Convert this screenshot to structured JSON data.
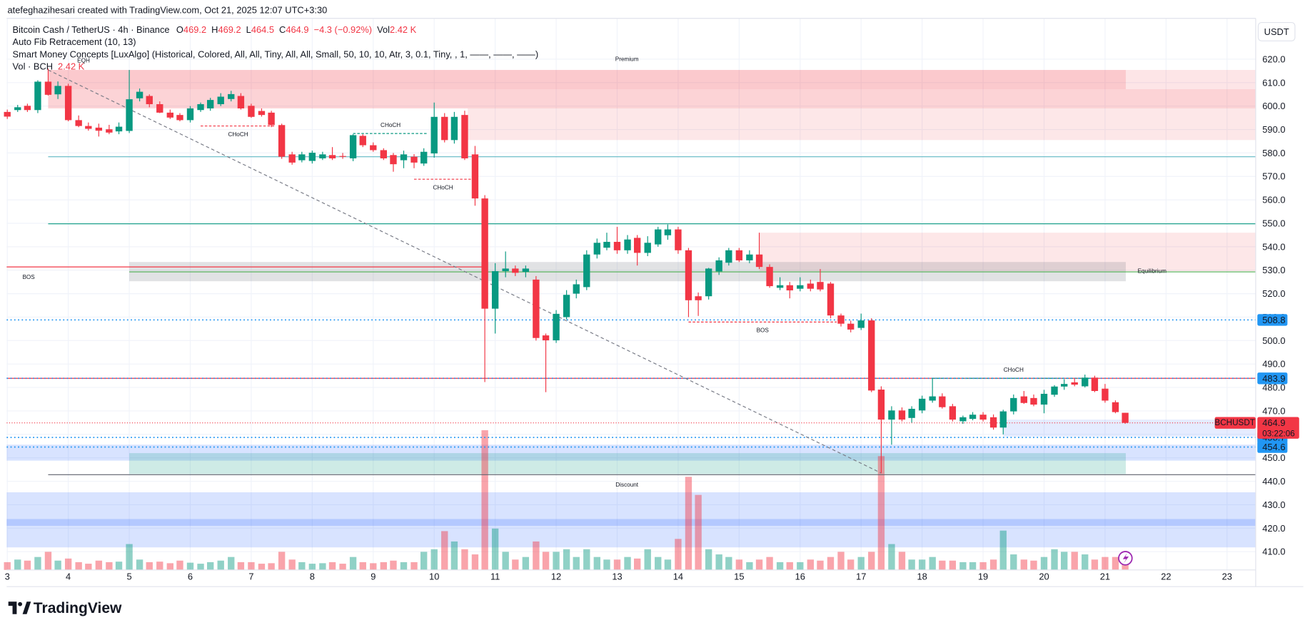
{
  "header": {
    "attribution": "atefeghazihesari created with TradingView.com, Oct 21, 2025 12:07 UTC+3:30",
    "currency": "USDT",
    "logo": "TradingView"
  },
  "legend": {
    "symbol": "Bitcoin Cash / TetherUS · 4h · Binance",
    "open": "O",
    "high": "H",
    "low": "L",
    "close": "C",
    "change": "−4.3 (−0.92%)",
    "volume": "Vol",
    "volume_value": "2.42 K",
    "indicators": [
      "Auto Fib Retracement (10, 13)",
      "Smart Money Concepts [LuxAlgo] (Historical, Colored, All, All, Tiny, All, All, Small, 50, 10, 10, Atr, 3, 0.1, Tiny, , 1, ——, ——, ——)"
    ],
    "volume_indicator": "Vol · BCH"
  },
  "chart_data": {
    "type": "candlestick",
    "up_color": "#089981",
    "down_color": "#f23645",
    "grid": true,
    "xlim": [
      2.99,
      23.47
    ],
    "ylim": [
      402.2,
      637.4
    ],
    "xticks": [
      3,
      4,
      5,
      6,
      7,
      8,
      9,
      10,
      11,
      12,
      13,
      14,
      15,
      16,
      17,
      18,
      19,
      20,
      21,
      22,
      23
    ],
    "yticks": [
      {
        "value": 410,
        "label": "410.0"
      },
      {
        "value": 420,
        "label": "420.0"
      },
      {
        "value": 430,
        "label": "430.0"
      },
      {
        "value": 440,
        "label": "440.0"
      },
      {
        "value": 450,
        "label": "450.0"
      },
      {
        "value": 460,
        "label": "460.0"
      },
      {
        "value": 470,
        "label": "470.0"
      },
      {
        "value": 480,
        "label": "480.0"
      },
      {
        "value": 490,
        "label": "490.0"
      },
      {
        "value": 500,
        "label": "500.0"
      },
      {
        "value": 510,
        "label": "510.0"
      },
      {
        "value": 520,
        "label": "520.0"
      },
      {
        "value": 530,
        "label": "530.0"
      },
      {
        "value": 540,
        "label": "540.0"
      },
      {
        "value": 550,
        "label": "550.0"
      },
      {
        "value": 560,
        "label": "560.0"
      },
      {
        "value": 570,
        "label": "570.0"
      },
      {
        "value": 580,
        "label": "580.0"
      },
      {
        "value": 590,
        "label": "590.0"
      },
      {
        "value": 600,
        "label": "600.0"
      },
      {
        "value": 610,
        "label": "610.0"
      },
      {
        "value": 620,
        "label": "620.0"
      }
    ],
    "x": [
      3,
      3.17,
      3.33,
      3.5,
      3.67,
      3.83,
      4,
      4.17,
      4.33,
      4.5,
      4.67,
      4.83,
      5,
      5.17,
      5.33,
      5.5,
      5.67,
      5.83,
      6,
      6.17,
      6.33,
      6.5,
      6.67,
      6.83,
      7,
      7.17,
      7.33,
      7.5,
      7.67,
      7.83,
      8,
      8.17,
      8.33,
      8.5,
      8.67,
      8.83,
      9,
      9.17,
      9.33,
      9.5,
      9.67,
      9.83,
      10,
      10.17,
      10.33,
      10.5,
      10.67,
      10.83,
      11,
      11.17,
      11.33,
      11.5,
      11.67,
      11.83,
      12,
      12.17,
      12.33,
      12.5,
      12.67,
      12.83,
      13,
      13.17,
      13.33,
      13.5,
      13.67,
      13.83,
      14,
      14.17,
      14.33,
      14.5,
      14.67,
      14.83,
      15,
      15.17,
      15.33,
      15.5,
      15.67,
      15.83,
      16,
      16.17,
      16.33,
      16.5,
      16.67,
      16.83,
      17,
      17.17,
      17.33,
      17.5,
      17.67,
      17.83,
      18,
      18.17,
      18.33,
      18.5,
      18.67,
      18.83,
      19,
      19.17,
      19.33,
      19.5,
      19.67,
      19.83,
      20,
      20.17,
      20.33,
      20.5,
      20.67,
      20.83,
      21,
      21.17,
      21.33
    ],
    "candles": [
      [
        597.5,
        598.5,
        594.5,
        595.5
      ],
      [
        598.3,
        600.5,
        597.5,
        599.5
      ],
      [
        600.1,
        601,
        597.5,
        598.3
      ],
      [
        598.3,
        611,
        597,
        610.4
      ],
      [
        610.4,
        616,
        604.5,
        604.8
      ],
      [
        605,
        610.5,
        603,
        608.6
      ],
      [
        608.6,
        609.5,
        593.5,
        594
      ],
      [
        594,
        596,
        591,
        591.5
      ],
      [
        591.5,
        593,
        589.5,
        590.3
      ],
      [
        590.8,
        592.5,
        587,
        589.5
      ],
      [
        590.1,
        592,
        588,
        588.7
      ],
      [
        589.2,
        593,
        588,
        591.2
      ],
      [
        589.4,
        615.4,
        588.5,
        602.9
      ],
      [
        603.3,
        607.5,
        602,
        606.1
      ],
      [
        604.3,
        605,
        599.5,
        600.8
      ],
      [
        600.8,
        602,
        597,
        597.2
      ],
      [
        597.2,
        598.5,
        594.5,
        595.1
      ],
      [
        596.2,
        597,
        593.5,
        594
      ],
      [
        594,
        600,
        593,
        599
      ],
      [
        598.3,
        601.5,
        597.5,
        600.8
      ],
      [
        599,
        603.5,
        598,
        602.6
      ],
      [
        600.8,
        605.5,
        600,
        604
      ],
      [
        603,
        606.5,
        602,
        605.1
      ],
      [
        604.3,
        605.5,
        598.5,
        599
      ],
      [
        600.1,
        601,
        595,
        595.4
      ],
      [
        597.9,
        599,
        595.5,
        596.2
      ],
      [
        597.2,
        598,
        591,
        591.9
      ],
      [
        591.9,
        592.5,
        577.5,
        578.4
      ],
      [
        579.4,
        580.5,
        575,
        575.9
      ],
      [
        576.9,
        580.5,
        576,
        579.4
      ],
      [
        576.6,
        581,
        575.5,
        580.1
      ],
      [
        577.7,
        580.5,
        577,
        579.4
      ],
      [
        579.1,
        582.5,
        577,
        577.7
      ],
      [
        578.7,
        580,
        577.5,
        578.4
      ],
      [
        577.7,
        588,
        576.5,
        587.6
      ],
      [
        587.3,
        588,
        582.5,
        583.3
      ],
      [
        583.3,
        584.5,
        580.5,
        581.2
      ],
      [
        581.2,
        582,
        577,
        577.7
      ],
      [
        579.1,
        580,
        572,
        575.2
      ],
      [
        576.9,
        581,
        573.5,
        579.4
      ],
      [
        578.4,
        579.5,
        573.5,
        575.9
      ],
      [
        575.5,
        582,
        574.5,
        580.5
      ],
      [
        579.8,
        601.5,
        578,
        595.4
      ],
      [
        595.4,
        597,
        584.5,
        585.5
      ],
      [
        585.5,
        597.5,
        584,
        595.4
      ],
      [
        596.2,
        598,
        577,
        577.7
      ],
      [
        579.4,
        583,
        557.5,
        560.6
      ],
      [
        560.6,
        562,
        482.3,
        513.6
      ],
      [
        513.6,
        533,
        503,
        529.6
      ],
      [
        529.6,
        538,
        527,
        530.7
      ],
      [
        530.7,
        532,
        527.5,
        528.9
      ],
      [
        529.3,
        532,
        527,
        530.7
      ],
      [
        526,
        527.5,
        500,
        501.1
      ],
      [
        502.2,
        503,
        478,
        500.1
      ],
      [
        500.1,
        513,
        499,
        511.4
      ],
      [
        510,
        521.5,
        509,
        519.5
      ],
      [
        520,
        526,
        518,
        524
      ],
      [
        522.8,
        538.5,
        521.5,
        536.7
      ],
      [
        536.7,
        543.5,
        535,
        541.7
      ],
      [
        539.6,
        546,
        538.5,
        542.1
      ],
      [
        542.1,
        548.5,
        537,
        538.5
      ],
      [
        538.5,
        545,
        537,
        543.1
      ],
      [
        543.8,
        545,
        532,
        537.4
      ],
      [
        537.4,
        544.5,
        536,
        541.7
      ],
      [
        541,
        548.5,
        540,
        547.4
      ],
      [
        544.9,
        549.5,
        543,
        547.4
      ],
      [
        547.4,
        548.5,
        537,
        538.5
      ],
      [
        538.5,
        539.5,
        510,
        517.2
      ],
      [
        518.9,
        520.5,
        510.5,
        517.2
      ],
      [
        518.9,
        531,
        517.5,
        530.7
      ],
      [
        529.5,
        535.5,
        528,
        534.2
      ],
      [
        533.2,
        539.5,
        532,
        538.5
      ],
      [
        538.5,
        539.5,
        533.5,
        534.2
      ],
      [
        534.2,
        538.5,
        533,
        536.7
      ],
      [
        536.7,
        546,
        530.5,
        531.4
      ],
      [
        531.4,
        532.5,
        522.5,
        523.2
      ],
      [
        522.5,
        527,
        521.5,
        523.6
      ],
      [
        523.6,
        525,
        518,
        521.4
      ],
      [
        522.1,
        527,
        521,
        523.6
      ],
      [
        524.3,
        526,
        521,
        522.1
      ],
      [
        525,
        530.5,
        521,
        521.8
      ],
      [
        524.3,
        525,
        509.5,
        510.7
      ],
      [
        510.7,
        511.5,
        506,
        507.2
      ],
      [
        507.2,
        508.5,
        503.5,
        504.7
      ],
      [
        505.4,
        511.5,
        504.5,
        508.6
      ],
      [
        508.6,
        509.5,
        478,
        478.7
      ],
      [
        479.1,
        480.5,
        443.5,
        466.3
      ],
      [
        466.3,
        472,
        455.6,
        470.2
      ],
      [
        470.2,
        471.5,
        465.5,
        466.3
      ],
      [
        467,
        472,
        465,
        470.9
      ],
      [
        470.2,
        476.5,
        469,
        475.2
      ],
      [
        474.4,
        484,
        473.5,
        476.2
      ],
      [
        476.2,
        477.5,
        471,
        471.6
      ],
      [
        472,
        473,
        465.5,
        466.3
      ],
      [
        465.6,
        468,
        464.5,
        467.3
      ],
      [
        466.6,
        469.5,
        466,
        468.4
      ],
      [
        468.4,
        469.5,
        465.5,
        466.3
      ],
      [
        467.3,
        468.5,
        462,
        462.9
      ],
      [
        462.9,
        470.5,
        460,
        469.8
      ],
      [
        469.8,
        477,
        468.5,
        475.5
      ],
      [
        476.2,
        478.5,
        473,
        473.4
      ],
      [
        475.5,
        477,
        472,
        472.7
      ],
      [
        472.7,
        479,
        469,
        477.3
      ],
      [
        476.9,
        481,
        476,
        480.4
      ],
      [
        480.4,
        483.5,
        479,
        481.5
      ],
      [
        482.2,
        484,
        480.5,
        481.2
      ],
      [
        480.5,
        485.5,
        480,
        484.2
      ],
      [
        484.2,
        485,
        478,
        478.5
      ],
      [
        479.5,
        481.5,
        473.5,
        474.4
      ],
      [
        473.7,
        474.5,
        469,
        469.5
      ],
      [
        469.2,
        469.2,
        464.5,
        464.9
      ]
    ],
    "volumes": [
      1.5,
      2,
      1.8,
      2.5,
      3.5,
      1.8,
      2.2,
      1.5,
      1.2,
      1.8,
      1.5,
      1.6,
      5,
      2,
      1.5,
      1.6,
      1.3,
      1.8,
      1.4,
      1.2,
      1.5,
      1.8,
      2.5,
      1.5,
      1.5,
      1.2,
      1.3,
      3.5,
      2,
      1.5,
      1.2,
      1.3,
      1.5,
      1.2,
      2.5,
      1.5,
      1.3,
      1.5,
      1.8,
      1.5,
      1.5,
      3.5,
      4,
      7.5,
      5.5,
      4,
      3,
      27,
      8,
      3.5,
      2,
      2.5,
      5.5,
      3.5,
      3.5,
      4,
      2.5,
      4,
      2.5,
      2,
      2,
      2.5,
      2.2,
      4,
      2.5,
      2,
      6,
      18,
      14.5,
      4,
      3,
      2.5,
      2,
      1.5,
      2,
      2.5,
      1.5,
      1.5,
      1.5,
      2,
      1.8,
      2.5,
      3.5,
      2,
      2.5,
      3.5,
      22,
      5,
      3.5,
      2,
      2,
      2.5,
      1.8,
      1.8,
      1.5,
      1.5,
      1.5,
      2,
      7.6,
      3,
      2,
      1.8,
      2.5,
      4,
      3.5,
      3.5,
      3,
      2,
      2.5,
      2.5,
      2.42
    ],
    "zones": [
      {
        "x": [
          3.67,
          23.47
        ],
        "y": [
          599,
          615.4
        ],
        "color": "rgba(242,54,69,0.13)"
      },
      {
        "x": [
          3.67,
          21.34
        ],
        "y": [
          607.2,
          615.4
        ],
        "color": "rgba(242,54,69,0.16)"
      },
      {
        "x": [
          3.67,
          23.47
        ],
        "y": [
          599,
          607.2
        ],
        "color": "rgba(242,54,69,0.1)"
      },
      {
        "x": [
          10.55,
          23.47
        ],
        "y": [
          585.5,
          599
        ],
        "color": "rgba(242,54,69,0.12)"
      },
      {
        "x": [
          15.33,
          23.47
        ],
        "y": [
          529.6,
          546
        ],
        "color": "rgba(242,54,69,0.12)"
      },
      {
        "x": [
          5,
          21.34
        ],
        "y": [
          525.3,
          533.5
        ],
        "color": "rgba(120,123,134,0.22)"
      },
      {
        "x": [
          19.33,
          23.47
        ],
        "y": [
          459.1,
          466.3
        ],
        "color": "rgba(41,98,255,0.12)"
      },
      {
        "x": [
          2.99,
          23.47
        ],
        "y": [
          448.8,
          455.6
        ],
        "color": "rgba(41,98,255,0.18)"
      },
      {
        "x": [
          5,
          21.34
        ],
        "y": [
          443.1,
          452
        ],
        "color": "rgba(8,153,129,0.2)"
      },
      {
        "x": [
          2.99,
          23.47
        ],
        "y": [
          411.8,
          435.3
        ],
        "color": "rgba(41,98,255,0.18)"
      },
      {
        "x": [
          2.99,
          23.47
        ],
        "y": [
          421,
          423.9
        ],
        "color": "rgba(41,98,255,0.2)"
      }
    ],
    "levels": [
      {
        "x": [
          3.67,
          23.47
        ],
        "value": 578.4,
        "color": "#5fb8c4"
      },
      {
        "x": [
          3.67,
          23.47
        ],
        "value": 549.8,
        "color": "#089981"
      },
      {
        "x": [
          5,
          23.47
        ],
        "value": 529.3,
        "color": "#4caf50"
      },
      {
        "x": [
          2.99,
          23.47
        ],
        "value": 483.9,
        "color": "#f23645"
      },
      {
        "x": [
          3.67,
          23.47
        ],
        "value": 442.8,
        "color": "#5d606b"
      },
      {
        "x": [
          2.99,
          10.8
        ],
        "value": 531.4,
        "color": "#f23645"
      }
    ],
    "structures": [
      {
        "label": "CHoCH",
        "x": [
          6.17,
          7.4
        ],
        "value": 591.5,
        "color": "#f23645"
      },
      {
        "label": "CHoCH",
        "x": [
          8.67,
          9.9
        ],
        "value": 588.3,
        "color": "#089981"
      },
      {
        "label": "CHoCH",
        "x": [
          9.67,
          10.62
        ],
        "value": 568.8,
        "color": "#f23645"
      },
      {
        "label": "BOS",
        "x": [
          14.17,
          16.6
        ],
        "value": 507.9,
        "color": "#f23645"
      },
      {
        "label": "CHoCH",
        "x": [
          18.17,
          20.83
        ],
        "value": 483.9,
        "color": "#089981"
      }
    ],
    "labels": [
      {
        "text": "EQH",
        "x": 4.25,
        "y": 619.3,
        "color": "#f23645"
      },
      {
        "text": "Premium",
        "x": 13.16,
        "y": 620,
        "color": "#f23645"
      },
      {
        "text": "BOS",
        "x": 3.35,
        "y": 527.1,
        "color": "#f23645"
      },
      {
        "text": "Equilibrium",
        "x": 21.77,
        "y": 529.6,
        "color": "#9598a1"
      },
      {
        "text": "Discount",
        "x": 13.16,
        "y": 438.5,
        "color": "#089981"
      }
    ],
    "trendline": {
      "x": [
        3.67,
        17.33
      ],
      "y": [
        615.4,
        443.5
      ]
    },
    "price_lines": [
      {
        "value": 508.8,
        "color": "#2196f3"
      },
      {
        "value": 483.9,
        "color": "#2196f3"
      },
      {
        "value": 458.7,
        "color": "#2196f3"
      },
      {
        "value": 454.6,
        "color": "#2196f3"
      }
    ],
    "symbol_tag": "BCHUSDT",
    "countdown": "03:22:06"
  }
}
